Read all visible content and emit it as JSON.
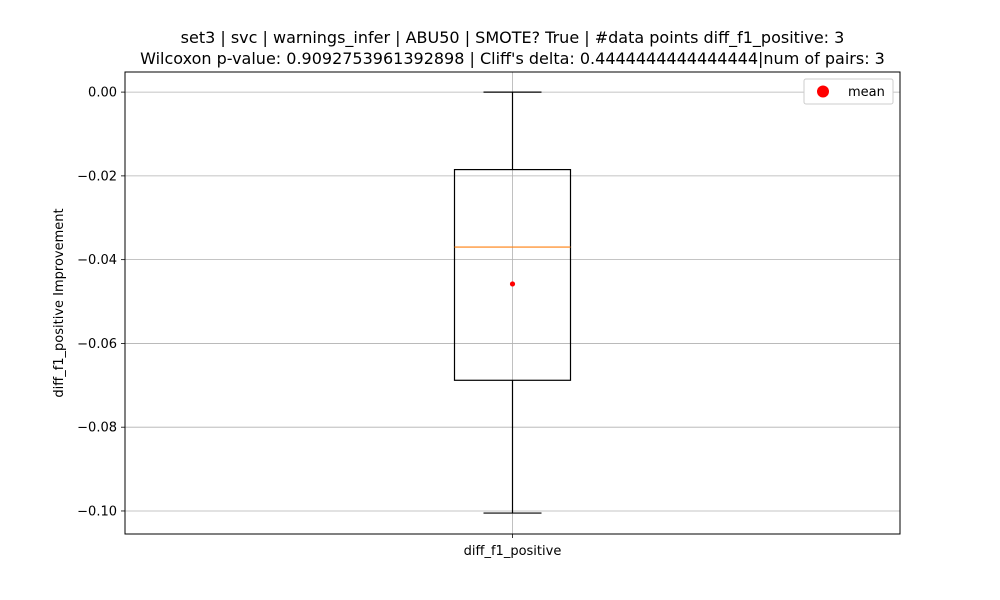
{
  "chart_data": {
    "type": "box",
    "title_lines": [
      "set3 | svc | warnings_infer | ABU50 | SMOTE? True | #data points diff_f1_positive: 3",
      "Wilcoxon p-value: 0.9092753961392898 | Cliff's delta: 0.4444444444444444|num of pairs: 3"
    ],
    "xlabel": "",
    "ylabel": "diff_f1_positive Improvement",
    "categories": [
      "diff_f1_positive"
    ],
    "ylim": [
      -0.1055,
      0.0048
    ],
    "yticks": [
      0.0,
      -0.02,
      -0.04,
      -0.06,
      -0.08,
      -0.1
    ],
    "ytick_labels": [
      "0.00",
      "−0.02",
      "−0.04",
      "−0.06",
      "−0.08",
      "−0.10"
    ],
    "grid": true,
    "legend_position": "top-right",
    "legend": [
      {
        "label": "mean",
        "color": "#ff0000",
        "marker": "circle"
      }
    ],
    "boxes": [
      {
        "category": "diff_f1_positive",
        "whisker_high": 0.0,
        "q3": -0.0185,
        "median": -0.037,
        "q1": -0.0688,
        "whisker_low": -0.1005,
        "mean": -0.0458
      }
    ],
    "colors": {
      "box": "#000000",
      "median": "#ff7f0e",
      "mean": "#ff0000",
      "grid": "#b0b0b0"
    }
  }
}
